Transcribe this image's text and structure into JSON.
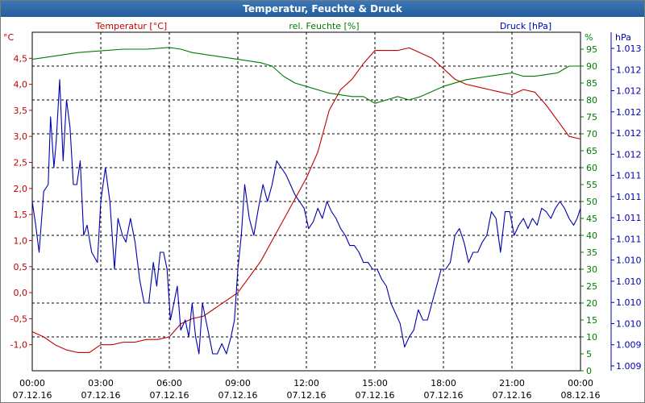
{
  "title": "Temperatur, Feuchte & Druck",
  "colors": {
    "temperature": "#c00000",
    "humidity": "#007a00",
    "pressure": "#0000b0",
    "grid": "#000000",
    "background": "#ffffff"
  },
  "chart_data": {
    "type": "line",
    "title": "Temperatur, Feuchte & Druck",
    "grid": true,
    "x_ticks": [
      {
        "time": "00:00",
        "date": "07.12.16"
      },
      {
        "time": "03:00",
        "date": "07.12.16"
      },
      {
        "time": "06:00",
        "date": "07.12.16"
      },
      {
        "time": "09:00",
        "date": "07.12.16"
      },
      {
        "time": "12:00",
        "date": "07.12.16"
      },
      {
        "time": "15:00",
        "date": "07.12.16"
      },
      {
        "time": "18:00",
        "date": "07.12.16"
      },
      {
        "time": "21:00",
        "date": "07.12.16"
      },
      {
        "time": "00:00",
        "date": "08.12.16"
      }
    ],
    "x_range_hours": [
      0,
      24
    ],
    "axes": {
      "temperature": {
        "unit_label": "°C",
        "header": "Temperatur [°C]",
        "range": [
          -1.5,
          5.0
        ],
        "ticks": [
          "-1,0",
          "-0,5",
          "0,0",
          "0,5",
          "1,0",
          "1,5",
          "2,0",
          "2,5",
          "3,0",
          "3,5",
          "4,0",
          "4,5"
        ],
        "tick_values": [
          -1.0,
          -0.5,
          0.0,
          0.5,
          1.0,
          1.5,
          2.0,
          2.5,
          3.0,
          3.5,
          4.0,
          4.5
        ]
      },
      "humidity": {
        "unit_label": "%",
        "header": "rel. Feuchte [%]",
        "range": [
          0,
          100
        ],
        "ticks": [
          "0",
          "5",
          "10",
          "15",
          "20",
          "25",
          "30",
          "35",
          "40",
          "45",
          "50",
          "55",
          "60",
          "65",
          "70",
          "75",
          "80",
          "85",
          "90",
          "95"
        ],
        "tick_values": [
          0,
          5,
          10,
          15,
          20,
          25,
          30,
          35,
          40,
          45,
          50,
          55,
          60,
          65,
          70,
          75,
          80,
          85,
          90,
          95
        ]
      },
      "pressure": {
        "unit_label": "hPa",
        "header": "Druck [hPa]",
        "range": [
          0,
          100
        ],
        "ticks": [
          "1.009",
          "1.009",
          "1.010",
          "1.010",
          "1.010",
          "1.010",
          "1.011",
          "1.011",
          "1.011",
          "1.011",
          "1.012",
          "1.012",
          "1.012",
          "1.012",
          "1.012",
          "1.013"
        ],
        "tick_values": [
          0,
          6.67,
          13.33,
          20,
          26.67,
          33.33,
          40,
          46.67,
          53.33,
          60,
          66.67,
          73.33,
          80,
          86.67,
          93.33,
          100
        ]
      }
    },
    "series": [
      {
        "name": "Temperatur [°C]",
        "axis": "temperature",
        "points": [
          [
            0,
            -0.75
          ],
          [
            0.5,
            -0.85
          ],
          [
            1,
            -1.0
          ],
          [
            1.5,
            -1.1
          ],
          [
            2,
            -1.15
          ],
          [
            2.5,
            -1.15
          ],
          [
            3,
            -1.0
          ],
          [
            3.5,
            -1.0
          ],
          [
            4,
            -0.95
          ],
          [
            4.5,
            -0.95
          ],
          [
            5,
            -0.9
          ],
          [
            5.5,
            -0.9
          ],
          [
            6,
            -0.85
          ],
          [
            6.5,
            -0.6
          ],
          [
            7,
            -0.5
          ],
          [
            7.5,
            -0.45
          ],
          [
            8,
            -0.3
          ],
          [
            8.5,
            -0.15
          ],
          [
            9,
            0.0
          ],
          [
            9.5,
            0.3
          ],
          [
            10,
            0.6
          ],
          [
            10.5,
            1.0
          ],
          [
            11,
            1.4
          ],
          [
            11.5,
            1.8
          ],
          [
            12,
            2.2
          ],
          [
            12.5,
            2.7
          ],
          [
            13,
            3.5
          ],
          [
            13.5,
            3.9
          ],
          [
            14,
            4.1
          ],
          [
            14.5,
            4.4
          ],
          [
            15,
            4.65
          ],
          [
            15.5,
            4.65
          ],
          [
            16,
            4.65
          ],
          [
            16.5,
            4.7
          ],
          [
            17,
            4.6
          ],
          [
            17.5,
            4.5
          ],
          [
            18,
            4.3
          ],
          [
            18.5,
            4.1
          ],
          [
            19,
            4.0
          ],
          [
            19.5,
            3.95
          ],
          [
            20,
            3.9
          ],
          [
            20.5,
            3.85
          ],
          [
            21,
            3.8
          ],
          [
            21.5,
            3.9
          ],
          [
            22,
            3.85
          ],
          [
            22.5,
            3.6
          ],
          [
            23,
            3.3
          ],
          [
            23.5,
            3.0
          ],
          [
            24,
            2.95
          ]
        ]
      },
      {
        "name": "rel. Feuchte [%]",
        "axis": "humidity",
        "points": [
          [
            0,
            92
          ],
          [
            1,
            93
          ],
          [
            2,
            94
          ],
          [
            3,
            94.5
          ],
          [
            4,
            95
          ],
          [
            5,
            95
          ],
          [
            6,
            95.5
          ],
          [
            6.5,
            95
          ],
          [
            7,
            94
          ],
          [
            8,
            93
          ],
          [
            9,
            92
          ],
          [
            10,
            91
          ],
          [
            10.5,
            90
          ],
          [
            11,
            87
          ],
          [
            11.5,
            85
          ],
          [
            12,
            84
          ],
          [
            13,
            82
          ],
          [
            14,
            81
          ],
          [
            14.5,
            81
          ],
          [
            15,
            79
          ],
          [
            15.5,
            80
          ],
          [
            16,
            81
          ],
          [
            16.5,
            80
          ],
          [
            17,
            81
          ],
          [
            18,
            84
          ],
          [
            19,
            86
          ],
          [
            20,
            87
          ],
          [
            21,
            88
          ],
          [
            21.5,
            87
          ],
          [
            22,
            87
          ],
          [
            23,
            88
          ],
          [
            23.5,
            90
          ],
          [
            24,
            90
          ]
        ]
      },
      {
        "name": "Druck [hPa]",
        "axis": "pressure",
        "points": [
          [
            0,
            50
          ],
          [
            0.15,
            43
          ],
          [
            0.3,
            35
          ],
          [
            0.5,
            53
          ],
          [
            0.7,
            55
          ],
          [
            0.8,
            75
          ],
          [
            0.95,
            60
          ],
          [
            1.05,
            68
          ],
          [
            1.2,
            86
          ],
          [
            1.35,
            62
          ],
          [
            1.5,
            80
          ],
          [
            1.65,
            72
          ],
          [
            1.8,
            55
          ],
          [
            1.95,
            55
          ],
          [
            2.1,
            62
          ],
          [
            2.25,
            40
          ],
          [
            2.4,
            43
          ],
          [
            2.6,
            35
          ],
          [
            2.85,
            32
          ],
          [
            3.0,
            50
          ],
          [
            3.2,
            60
          ],
          [
            3.4,
            50
          ],
          [
            3.6,
            30
          ],
          [
            3.75,
            45
          ],
          [
            3.95,
            40
          ],
          [
            4.1,
            38
          ],
          [
            4.3,
            45
          ],
          [
            4.5,
            38
          ],
          [
            4.7,
            27
          ],
          [
            4.9,
            20
          ],
          [
            5.1,
            20
          ],
          [
            5.3,
            32
          ],
          [
            5.45,
            25
          ],
          [
            5.6,
            35
          ],
          [
            5.75,
            35
          ],
          [
            5.9,
            30
          ],
          [
            6.05,
            15
          ],
          [
            6.2,
            20
          ],
          [
            6.35,
            25
          ],
          [
            6.5,
            12
          ],
          [
            6.7,
            15
          ],
          [
            6.85,
            10
          ],
          [
            7.0,
            20
          ],
          [
            7.15,
            10
          ],
          [
            7.3,
            5
          ],
          [
            7.45,
            20
          ],
          [
            7.6,
            15
          ],
          [
            7.75,
            10
          ],
          [
            7.9,
            5
          ],
          [
            8.1,
            5
          ],
          [
            8.3,
            8
          ],
          [
            8.5,
            5
          ],
          [
            8.7,
            10
          ],
          [
            8.85,
            15
          ],
          [
            9.0,
            30
          ],
          [
            9.15,
            40
          ],
          [
            9.3,
            55
          ],
          [
            9.5,
            45
          ],
          [
            9.7,
            40
          ],
          [
            9.9,
            48
          ],
          [
            10.1,
            55
          ],
          [
            10.3,
            50
          ],
          [
            10.5,
            55
          ],
          [
            10.7,
            62
          ],
          [
            10.9,
            60
          ],
          [
            11.1,
            58
          ],
          [
            11.3,
            55
          ],
          [
            11.5,
            52
          ],
          [
            11.7,
            50
          ],
          [
            11.9,
            48
          ],
          [
            12.1,
            42
          ],
          [
            12.3,
            44
          ],
          [
            12.5,
            48
          ],
          [
            12.7,
            45
          ],
          [
            12.9,
            50
          ],
          [
            13.1,
            47
          ],
          [
            13.3,
            45
          ],
          [
            13.5,
            42
          ],
          [
            13.7,
            40
          ],
          [
            13.9,
            37
          ],
          [
            14.1,
            37
          ],
          [
            14.3,
            35
          ],
          [
            14.5,
            32
          ],
          [
            14.7,
            32
          ],
          [
            14.9,
            30
          ],
          [
            15.1,
            30
          ],
          [
            15.3,
            27
          ],
          [
            15.5,
            25
          ],
          [
            15.7,
            20
          ],
          [
            15.9,
            17
          ],
          [
            16.1,
            14
          ],
          [
            16.3,
            7
          ],
          [
            16.5,
            10
          ],
          [
            16.7,
            12
          ],
          [
            16.9,
            18
          ],
          [
            17.1,
            15
          ],
          [
            17.3,
            15
          ],
          [
            17.5,
            20
          ],
          [
            17.7,
            25
          ],
          [
            17.9,
            30
          ],
          [
            18.1,
            30
          ],
          [
            18.3,
            32
          ],
          [
            18.5,
            40
          ],
          [
            18.7,
            42
          ],
          [
            18.9,
            38
          ],
          [
            19.1,
            32
          ],
          [
            19.3,
            35
          ],
          [
            19.5,
            35
          ],
          [
            19.7,
            38
          ],
          [
            19.9,
            40
          ],
          [
            20.1,
            47
          ],
          [
            20.3,
            45
          ],
          [
            20.5,
            35
          ],
          [
            20.7,
            47
          ],
          [
            20.9,
            47
          ],
          [
            21.1,
            40
          ],
          [
            21.3,
            43
          ],
          [
            21.5,
            45
          ],
          [
            21.7,
            42
          ],
          [
            21.9,
            45
          ],
          [
            22.1,
            43
          ],
          [
            22.3,
            48
          ],
          [
            22.5,
            47
          ],
          [
            22.7,
            45
          ],
          [
            22.9,
            48
          ],
          [
            23.1,
            50
          ],
          [
            23.3,
            48
          ],
          [
            23.5,
            45
          ],
          [
            23.7,
            43
          ],
          [
            23.85,
            45
          ],
          [
            24,
            48
          ]
        ]
      }
    ]
  }
}
